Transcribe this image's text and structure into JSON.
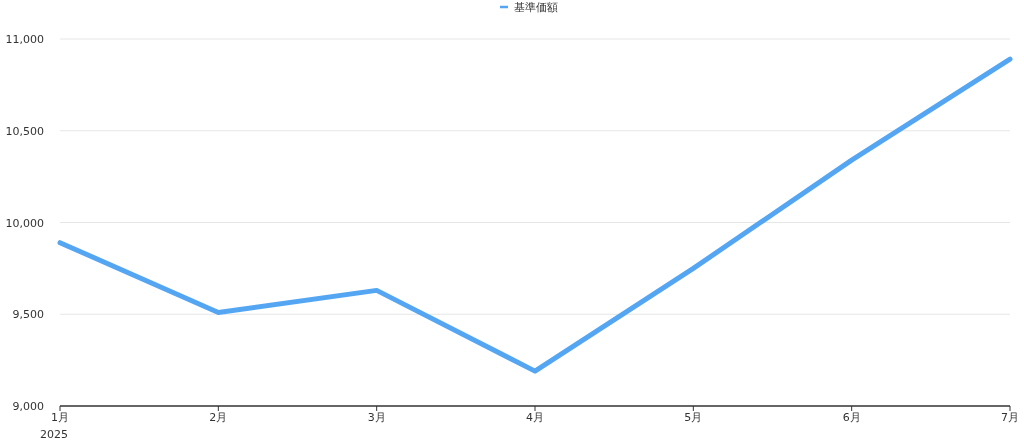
{
  "chart_data": {
    "type": "line",
    "categories": [
      "1月",
      "2月",
      "3月",
      "4月",
      "5月",
      "6月",
      "7月"
    ],
    "series": [
      {
        "name": "基準価額",
        "color": "#55a6f2",
        "values": [
          9890,
          9510,
          9630,
          9190,
          9750,
          10340,
          10890
        ]
      }
    ],
    "ylim": [
      9000,
      11000
    ],
    "yticks": [
      {
        "value": 9000,
        "label": "9,000"
      },
      {
        "value": 9500,
        "label": "9,500"
      },
      {
        "value": 10000,
        "label": "10,000"
      },
      {
        "value": 10500,
        "label": "10,500"
      },
      {
        "value": 11000,
        "label": "11,000"
      }
    ],
    "grid": "y",
    "legend": "top",
    "marker": "none",
    "line_style": "solid",
    "annotations": [
      "2025"
    ]
  }
}
